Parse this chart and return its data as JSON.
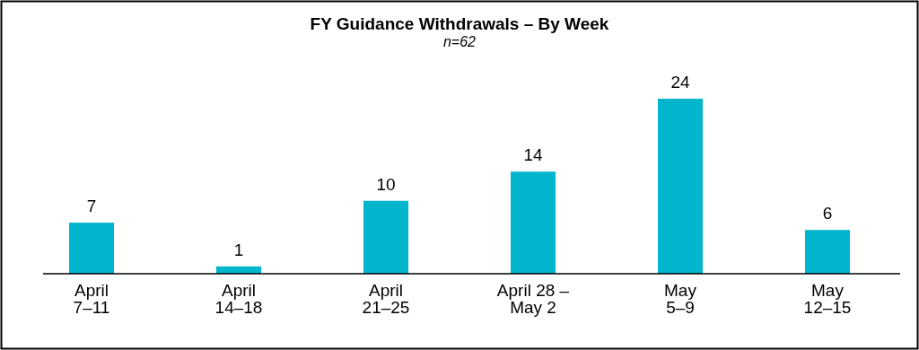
{
  "chart_data": {
    "type": "bar",
    "title": "FY Guidance Withdrawals – By Week",
    "subtitle": "n=62",
    "categories": [
      "April\n7–11",
      "April\n14–18",
      "April\n21–25",
      "April 28 –\nMay 2",
      "May\n5–9",
      "May\n12–15"
    ],
    "values": [
      7,
      1,
      10,
      14,
      24,
      6
    ],
    "color": "#00b5cc",
    "data_labels": true
  }
}
